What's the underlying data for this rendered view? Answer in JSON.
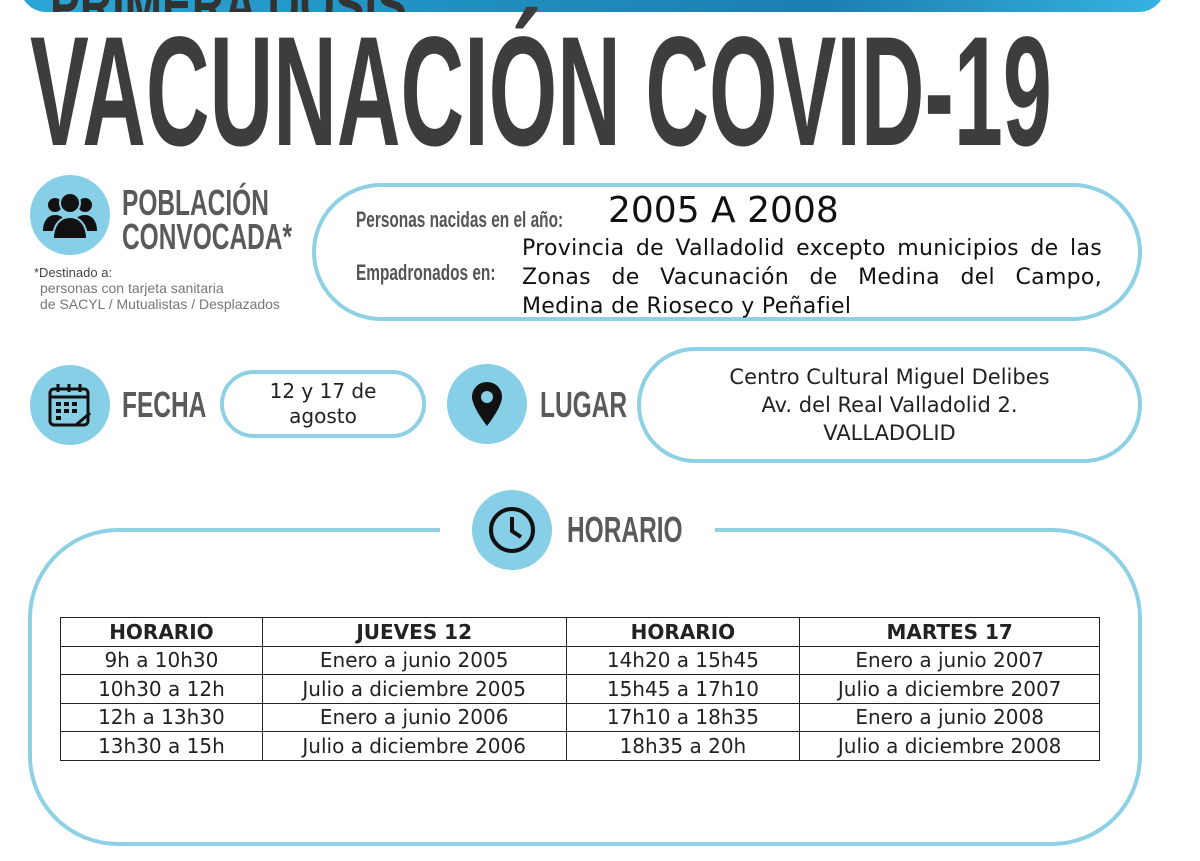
{
  "banner": {
    "text": "PRIMERA DOSIS"
  },
  "title": "VACUNACIÓN COVID-19",
  "poblacion": {
    "heading_1": "POBLACIÓN",
    "heading_2": "CONVOCADA*",
    "note_title": "*Destinado a:",
    "note_line_1": "personas con tarjeta sanitaria",
    "note_line_2": "de SACYL / Mutualistas / Desplazados",
    "nacidos_label": "Personas nacidas en el año:",
    "nacidos_value": "2005 A 2008",
    "empadronados_label": "Empadronados en:",
    "empadronados_value": "Provincia de Valladolid excepto municipios de las Zonas de Vacunación de Medina del Campo, Medina de Rioseco y Peñafiel"
  },
  "fecha": {
    "label": "FECHA",
    "line_1": "12 y 17 de",
    "line_2": "agosto"
  },
  "lugar": {
    "label": "LUGAR",
    "line_1": "Centro Cultural Miguel Delibes",
    "line_2": "Av. del Real Valladolid 2.",
    "line_3": "VALLADOLID"
  },
  "horario": {
    "label": "HORARIO",
    "headers": [
      "HORARIO",
      "JUEVES 12",
      "HORARIO",
      "MARTES 17"
    ],
    "rows": [
      [
        "9h a 10h30",
        "Enero a junio 2005",
        "14h20 a 15h45",
        "Enero a junio 2007"
      ],
      [
        "10h30 a 12h",
        "Julio a diciembre 2005",
        "15h45 a 17h10",
        "Julio a diciembre 2007"
      ],
      [
        "12h a 13h30",
        "Enero a junio 2006",
        "17h10 a 18h35",
        "Enero a junio 2008"
      ],
      [
        "13h30 a 15h",
        "Julio a diciembre 2006",
        "18h35 a 20h",
        "Julio a diciembre 2008"
      ]
    ]
  },
  "colors": {
    "accent": "#86cfe6",
    "border": "#8ed0e4",
    "title": "#3d3d3d",
    "banner": "#1f8fc0"
  }
}
